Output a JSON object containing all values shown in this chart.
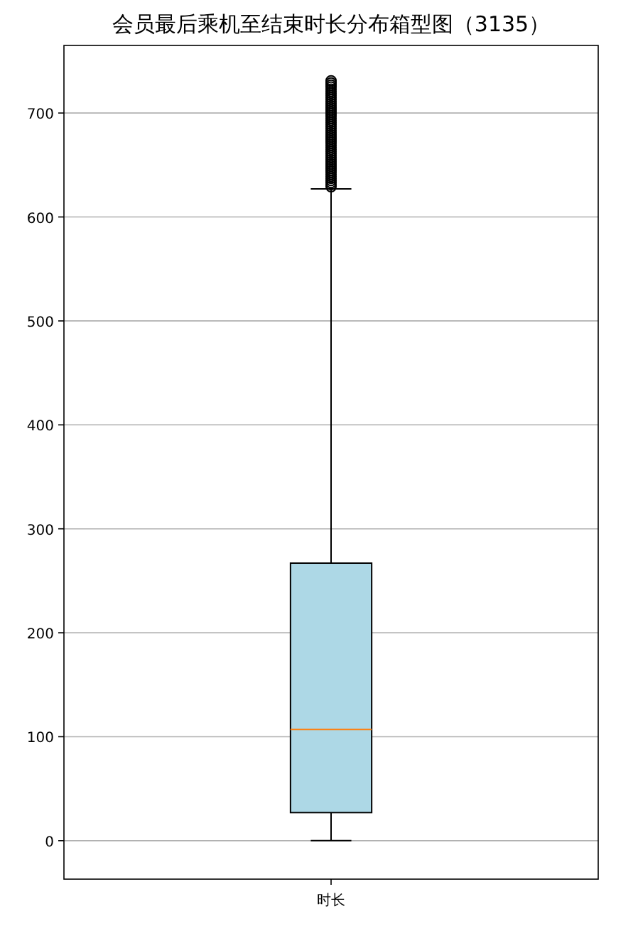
{
  "chart_data": {
    "type": "box",
    "title": "会员最后乘机至结束时长分布箱型图（3135）",
    "categories": [
      "时长"
    ],
    "boxes": [
      {
        "low": 0,
        "q1": 27,
        "median": 107,
        "q3": 267,
        "high": 627,
        "outliers": [
          629,
          631,
          633,
          635,
          637,
          639,
          641,
          643,
          645,
          647,
          649,
          651,
          653,
          655,
          657,
          659,
          661,
          663,
          665,
          667,
          669,
          671,
          673,
          675,
          677,
          679,
          681,
          683,
          685,
          687,
          689,
          691,
          693,
          695,
          697,
          699,
          701,
          703,
          705,
          707,
          709,
          711,
          713,
          715,
          717,
          719,
          721,
          723,
          725,
          727,
          729,
          731
        ]
      }
    ],
    "color": "#add8e6",
    "ylim": [
      -37,
      765
    ],
    "yticks": [
      0,
      100,
      200,
      300,
      400,
      500,
      600,
      700
    ],
    "grid": "y"
  }
}
